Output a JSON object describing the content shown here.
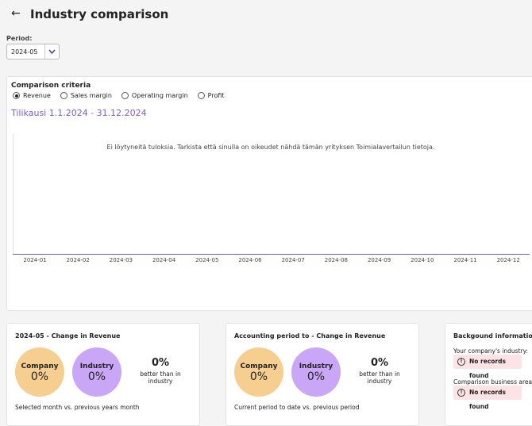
{
  "header": {
    "title": "Industry comparison"
  },
  "period": {
    "label": "Period:",
    "value": "2024-05"
  },
  "criteria": {
    "title": "Comparison criteria",
    "options": [
      "Revenue",
      "Sales margin",
      "Operating margin",
      "Profit"
    ],
    "selected": "Revenue",
    "period_title": "Tilikausi 1.1.2024 - 31.12.2024"
  },
  "chart": {
    "message": "Ei löytyneitä tuloksia. Tarkista että sinulla on oikeudet nähdä tämän yrityksen Toimialavertailun tietoja.",
    "categories": [
      "2024-01",
      "2024-02",
      "2024-03",
      "2024-04",
      "2024-05",
      "2024-06",
      "2024-07",
      "2024-08",
      "2024-09",
      "2024-10",
      "2024-11",
      "2024-12"
    ]
  },
  "cards": [
    {
      "title": "2024-05 - Change in Revenue",
      "company_label": "Company",
      "company_value": "0%",
      "industry_label": "Industry",
      "industry_value": "0%",
      "better_value": "0%",
      "better_text": "better than in industry",
      "footer": "Selected month vs. previous years month"
    },
    {
      "title": "Accounting period to - Change in Revenue",
      "company_label": "Company",
      "company_value": "0%",
      "industry_label": "Industry",
      "industry_value": "0%",
      "better_value": "0%",
      "better_text": "better than in industry",
      "footer": "Current period to date vs. previous period"
    }
  ],
  "background": {
    "title": "Backgound information",
    "industry_label": "Your company's industry:",
    "industry_value": "No records found",
    "area_label": "Comparison business area:",
    "area_value": "No records found"
  }
}
